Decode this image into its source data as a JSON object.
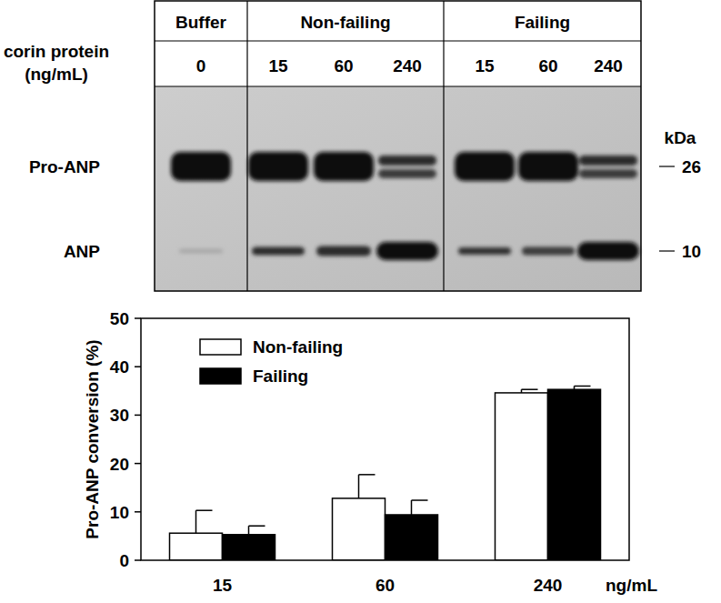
{
  "blot": {
    "groups": [
      "Buffer",
      "Non-failing",
      "Failing"
    ],
    "row_label": [
      "corin protein",
      "(ng/mL)"
    ],
    "lanes": [
      "0",
      "15",
      "60",
      "240",
      "15",
      "60",
      "240"
    ],
    "bands": [
      "Pro-ANP",
      "ANP"
    ],
    "markers": {
      "unit": "kDa",
      "labels": [
        "26",
        "10"
      ]
    }
  },
  "chart_data": {
    "type": "bar",
    "categories": [
      "15",
      "60",
      "240"
    ],
    "x_label": "ng/mL",
    "y_label": "Pro-ANP conversion (%)",
    "ylim": [
      0,
      50
    ],
    "yticks": [
      0,
      10,
      20,
      30,
      40,
      50
    ],
    "legend": "upper left",
    "series": [
      {
        "name": "Non-failing",
        "color": "#ffffff",
        "values": [
          5.6,
          12.8,
          34.6
        ],
        "errors": [
          4.7,
          4.9,
          0.7
        ]
      },
      {
        "name": "Failing",
        "color": "#000000",
        "values": [
          5.3,
          9.4,
          35.3
        ],
        "errors": [
          1.8,
          3.0,
          0.7
        ]
      }
    ]
  }
}
